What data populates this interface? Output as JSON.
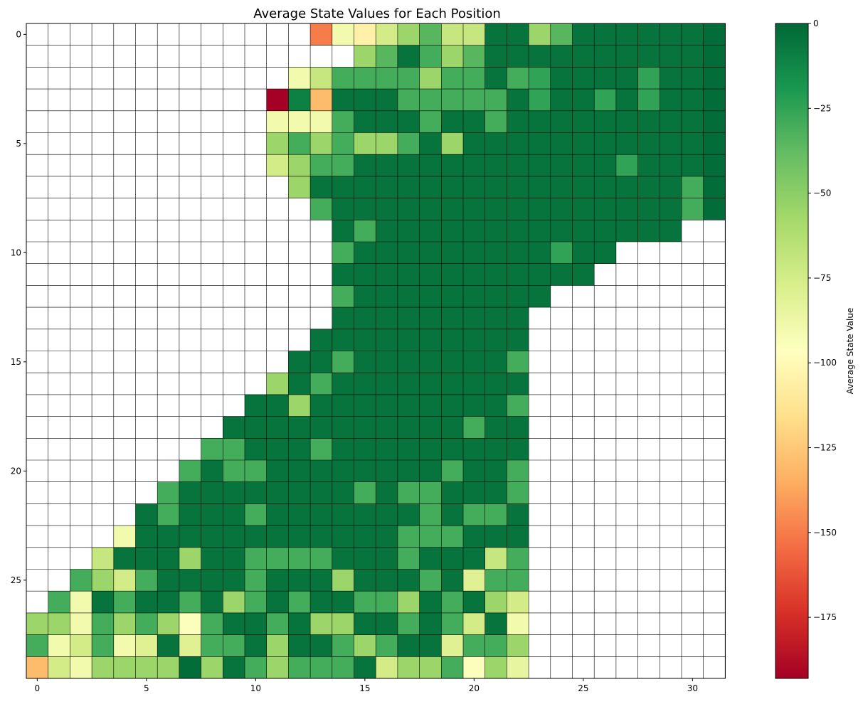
{
  "chart_data": {
    "type": "heatmap",
    "title": "Average State Values for Each Position",
    "colorbar": {
      "label": "Average State Value",
      "range": [
        -193,
        0
      ],
      "ticks": [
        0,
        -25,
        -50,
        -75,
        -100,
        -125,
        -150,
        -175
      ],
      "colormap": "RdYlGn"
    },
    "x_ticks": [
      0,
      5,
      10,
      15,
      20,
      25,
      30
    ],
    "y_ticks": [
      0,
      5,
      10,
      15,
      20,
      25
    ],
    "n_cols": 32,
    "n_rows": 30,
    "empty_value": null,
    "rows": [
      [
        null,
        null,
        null,
        null,
        null,
        null,
        null,
        null,
        null,
        null,
        null,
        null,
        null,
        -150,
        -90,
        -105,
        -75,
        -55,
        -35,
        -70,
        -70,
        -5,
        -5,
        -55,
        -35,
        -5,
        -5,
        -5,
        -5,
        -5,
        -5,
        -2
      ],
      [
        null,
        null,
        null,
        null,
        null,
        null,
        null,
        null,
        null,
        null,
        null,
        null,
        null,
        null,
        null,
        -55,
        -35,
        -5,
        -30,
        -55,
        -35,
        -5,
        -5,
        -5,
        -5,
        -5,
        -5,
        -5,
        -5,
        -5,
        -5,
        -2
      ],
      [
        null,
        null,
        null,
        null,
        null,
        null,
        null,
        null,
        null,
        null,
        null,
        null,
        -90,
        -70,
        -30,
        -30,
        -30,
        -30,
        -55,
        -30,
        -30,
        -5,
        -30,
        -25,
        -5,
        -5,
        -5,
        -5,
        -25,
        -5,
        -5,
        -2
      ],
      [
        null,
        null,
        null,
        null,
        null,
        null,
        null,
        null,
        null,
        null,
        null,
        -193,
        -10,
        -130,
        -5,
        -5,
        -5,
        -30,
        -30,
        -30,
        -30,
        -30,
        -5,
        -25,
        -5,
        -5,
        -25,
        -5,
        -25,
        -5,
        -5,
        -2
      ],
      [
        null,
        null,
        null,
        null,
        null,
        null,
        null,
        null,
        null,
        null,
        null,
        -90,
        -90,
        -90,
        -30,
        -5,
        -5,
        -5,
        -30,
        -5,
        -5,
        -30,
        -5,
        -5,
        -5,
        -5,
        -5,
        -5,
        -5,
        -5,
        -5,
        -2
      ],
      [
        null,
        null,
        null,
        null,
        null,
        null,
        null,
        null,
        null,
        null,
        null,
        -55,
        -30,
        -55,
        -30,
        -55,
        -55,
        -30,
        -5,
        -55,
        -5,
        -5,
        -5,
        -5,
        -5,
        -5,
        -5,
        -5,
        -5,
        -5,
        -5,
        -2
      ],
      [
        null,
        null,
        null,
        null,
        null,
        null,
        null,
        null,
        null,
        null,
        null,
        -75,
        -55,
        -30,
        -30,
        -5,
        -5,
        -5,
        -5,
        -5,
        -5,
        -5,
        -5,
        -5,
        -5,
        -5,
        -5,
        -25,
        -5,
        -5,
        -5,
        -2
      ],
      [
        null,
        null,
        null,
        null,
        null,
        null,
        null,
        null,
        null,
        null,
        null,
        null,
        -55,
        -5,
        -5,
        -5,
        -5,
        -5,
        -5,
        -5,
        -5,
        -5,
        -5,
        -5,
        -5,
        -5,
        -5,
        -5,
        -5,
        -5,
        -30,
        -2
      ],
      [
        null,
        null,
        null,
        null,
        null,
        null,
        null,
        null,
        null,
        null,
        null,
        null,
        null,
        -30,
        -5,
        -5,
        -5,
        -5,
        -5,
        -5,
        -5,
        -5,
        -5,
        -5,
        -5,
        -5,
        -5,
        -5,
        -5,
        -5,
        -30,
        -2
      ],
      [
        null,
        null,
        null,
        null,
        null,
        null,
        null,
        null,
        null,
        null,
        null,
        null,
        null,
        null,
        -5,
        -30,
        -5,
        -5,
        -5,
        -5,
        -5,
        -5,
        -5,
        -5,
        -5,
        -5,
        -5,
        -5,
        -5,
        -5,
        null,
        null
      ],
      [
        null,
        null,
        null,
        null,
        null,
        null,
        null,
        null,
        null,
        null,
        null,
        null,
        null,
        null,
        -30,
        -5,
        -5,
        -5,
        -5,
        -5,
        -5,
        -5,
        -5,
        -5,
        -25,
        -5,
        -5,
        null,
        null,
        null,
        null,
        null
      ],
      [
        null,
        null,
        null,
        null,
        null,
        null,
        null,
        null,
        null,
        null,
        null,
        null,
        null,
        null,
        -5,
        -5,
        -5,
        -5,
        -5,
        -5,
        -5,
        -5,
        -5,
        -5,
        -5,
        -5,
        null,
        null,
        null,
        null,
        null,
        null
      ],
      [
        null,
        null,
        null,
        null,
        null,
        null,
        null,
        null,
        null,
        null,
        null,
        null,
        null,
        null,
        -30,
        -5,
        -5,
        -5,
        -5,
        -5,
        -5,
        -5,
        -5,
        -5,
        null,
        null,
        null,
        null,
        null,
        null,
        null,
        null
      ],
      [
        null,
        null,
        null,
        null,
        null,
        null,
        null,
        null,
        null,
        null,
        null,
        null,
        null,
        null,
        -5,
        -5,
        -5,
        -5,
        -5,
        -5,
        -5,
        -5,
        -5,
        null,
        null,
        null,
        null,
        null,
        null,
        null,
        null,
        null
      ],
      [
        null,
        null,
        null,
        null,
        null,
        null,
        null,
        null,
        null,
        null,
        null,
        null,
        null,
        -5,
        -5,
        -5,
        -5,
        -5,
        -5,
        -5,
        -5,
        -5,
        -5,
        null,
        null,
        null,
        null,
        null,
        null,
        null,
        null,
        null
      ],
      [
        null,
        null,
        null,
        null,
        null,
        null,
        null,
        null,
        null,
        null,
        null,
        null,
        -5,
        -5,
        -30,
        -5,
        -5,
        -5,
        -5,
        -5,
        -5,
        -5,
        -30,
        null,
        null,
        null,
        null,
        null,
        null,
        null,
        null,
        null
      ],
      [
        null,
        null,
        null,
        null,
        null,
        null,
        null,
        null,
        null,
        null,
        null,
        -55,
        -5,
        -30,
        -5,
        -5,
        -5,
        -5,
        -5,
        -5,
        -5,
        -5,
        -5,
        null,
        null,
        null,
        null,
        null,
        null,
        null,
        null,
        null
      ],
      [
        null,
        null,
        null,
        null,
        null,
        null,
        null,
        null,
        null,
        null,
        -5,
        -5,
        -55,
        -5,
        -5,
        -5,
        -5,
        -5,
        -5,
        -5,
        -5,
        -5,
        -30,
        null,
        null,
        null,
        null,
        null,
        null,
        null,
        null,
        null
      ],
      [
        null,
        null,
        null,
        null,
        null,
        null,
        null,
        null,
        null,
        -5,
        -5,
        -5,
        -5,
        -5,
        -5,
        -5,
        -5,
        -5,
        -5,
        -5,
        -30,
        -5,
        -5,
        null,
        null,
        null,
        null,
        null,
        null,
        null,
        null,
        null
      ],
      [
        null,
        null,
        null,
        null,
        null,
        null,
        null,
        null,
        -30,
        -30,
        -5,
        -5,
        -5,
        -30,
        -5,
        -5,
        -5,
        -5,
        -5,
        -5,
        -5,
        -5,
        -5,
        null,
        null,
        null,
        null,
        null,
        null,
        null,
        null,
        null
      ],
      [
        null,
        null,
        null,
        null,
        null,
        null,
        null,
        -30,
        -5,
        -30,
        -30,
        -5,
        -5,
        -5,
        -5,
        -5,
        -5,
        -5,
        -5,
        -30,
        -5,
        -5,
        -30,
        null,
        null,
        null,
        null,
        null,
        null,
        null,
        null,
        null
      ],
      [
        null,
        null,
        null,
        null,
        null,
        null,
        -30,
        -5,
        -5,
        -5,
        -5,
        -5,
        -5,
        -5,
        -5,
        -30,
        -5,
        -30,
        -30,
        -5,
        -5,
        -5,
        -30,
        null,
        null,
        null,
        null,
        null,
        null,
        null,
        null,
        null
      ],
      [
        null,
        null,
        null,
        null,
        null,
        -5,
        -30,
        -5,
        -5,
        -5,
        -30,
        -5,
        -5,
        -5,
        -5,
        -5,
        -5,
        -5,
        -30,
        -5,
        -30,
        -30,
        -5,
        null,
        null,
        null,
        null,
        null,
        null,
        null,
        null,
        null
      ],
      [
        null,
        null,
        null,
        null,
        -90,
        -5,
        -5,
        -5,
        -5,
        -5,
        -5,
        -5,
        -5,
        -5,
        -5,
        -5,
        -5,
        -30,
        -30,
        -30,
        -5,
        -5,
        -5,
        null,
        null,
        null,
        null,
        null,
        null,
        null,
        null,
        null
      ],
      [
        null,
        null,
        null,
        -70,
        -5,
        -5,
        -5,
        -55,
        -5,
        -5,
        -30,
        -30,
        -30,
        -30,
        -5,
        -5,
        -5,
        -30,
        -5,
        -5,
        -5,
        -70,
        -30,
        null,
        null,
        null,
        null,
        null,
        null,
        null,
        null,
        null
      ],
      [
        null,
        null,
        -30,
        -55,
        -75,
        -30,
        -5,
        -5,
        -5,
        -5,
        -30,
        -5,
        -5,
        -5,
        -55,
        -5,
        -5,
        -5,
        -30,
        -5,
        -80,
        -30,
        -30,
        null,
        null,
        null,
        null,
        null,
        null,
        null,
        null,
        null
      ],
      [
        null,
        -30,
        -90,
        -5,
        -30,
        -5,
        -5,
        -30,
        -5,
        -55,
        -30,
        -5,
        -30,
        -5,
        -5,
        -30,
        -30,
        -55,
        -5,
        -30,
        -5,
        -55,
        -75,
        null,
        null,
        null,
        null,
        null,
        null,
        null,
        null,
        null
      ],
      [
        -55,
        -55,
        -90,
        -30,
        -55,
        -30,
        -55,
        -95,
        -30,
        -5,
        -5,
        -30,
        -5,
        -55,
        -55,
        -5,
        -5,
        -30,
        -5,
        -30,
        -75,
        -5,
        -90,
        null,
        null,
        null,
        null,
        null,
        null,
        null,
        null,
        null
      ],
      [
        -30,
        -90,
        -75,
        -30,
        -90,
        -80,
        -5,
        -80,
        -30,
        -30,
        -5,
        -55,
        -5,
        -5,
        -30,
        -55,
        -30,
        -5,
        -5,
        -80,
        -30,
        -30,
        -55,
        null,
        null,
        null,
        null,
        null,
        null,
        null,
        null,
        null
      ],
      [
        -130,
        -75,
        -90,
        -55,
        -55,
        -55,
        -55,
        -2,
        -55,
        -5,
        -30,
        -55,
        -30,
        -30,
        -30,
        -5,
        -75,
        -55,
        -55,
        -30,
        -95,
        -55,
        -85,
        null,
        null,
        null,
        null,
        null,
        null,
        null,
        null,
        null
      ]
    ]
  }
}
